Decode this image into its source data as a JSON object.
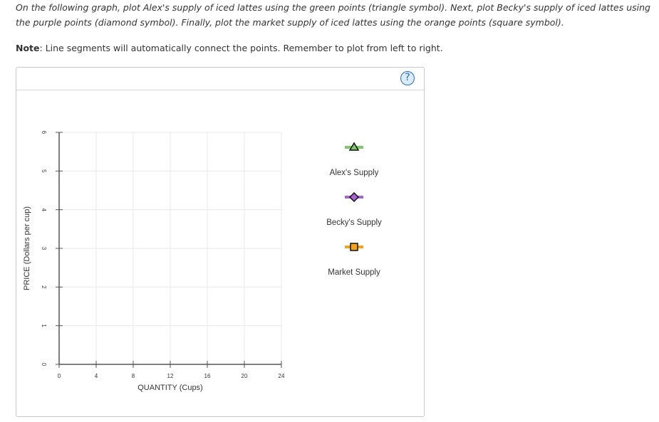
{
  "instructions": "On the following graph, plot Alex's supply of iced lattes using the green points (triangle symbol). Next, plot Becky's supply of iced lattes using the purple points (diamond symbol). Finally, plot the market supply of iced lattes using the orange points (square symbol).",
  "note_label": "Note",
  "note_text": ": Line segments will automatically connect the points. Remember to plot from left to right.",
  "help_label": "?",
  "colors": {
    "green": "#7fc86a",
    "purple": "#a765cf",
    "orange": "#f4a21a",
    "grid": "#e8e8e8",
    "axis": "#555555",
    "help": "#2b6cb8"
  },
  "chart_data": {
    "type": "line",
    "xlabel": "QUANTITY (Cups)",
    "ylabel": "PRICE (Dollars per cup)",
    "xlim": [
      0,
      24
    ],
    "ylim": [
      0,
      6
    ],
    "xticks": [
      0,
      4,
      8,
      12,
      16,
      20,
      24
    ],
    "yticks": [
      0,
      1,
      2,
      3,
      4,
      5,
      6
    ],
    "grid": true,
    "legend": {
      "placement": "right",
      "items": [
        {
          "name": "Alex's Supply",
          "symbol": "triangle",
          "color": "#7fc86a",
          "icon": "triangle-icon"
        },
        {
          "name": "Becky's Supply",
          "symbol": "diamond",
          "color": "#a765cf",
          "icon": "diamond-icon"
        },
        {
          "name": "Market Supply",
          "symbol": "square",
          "color": "#f4a21a",
          "icon": "square-icon"
        }
      ]
    },
    "series": []
  }
}
